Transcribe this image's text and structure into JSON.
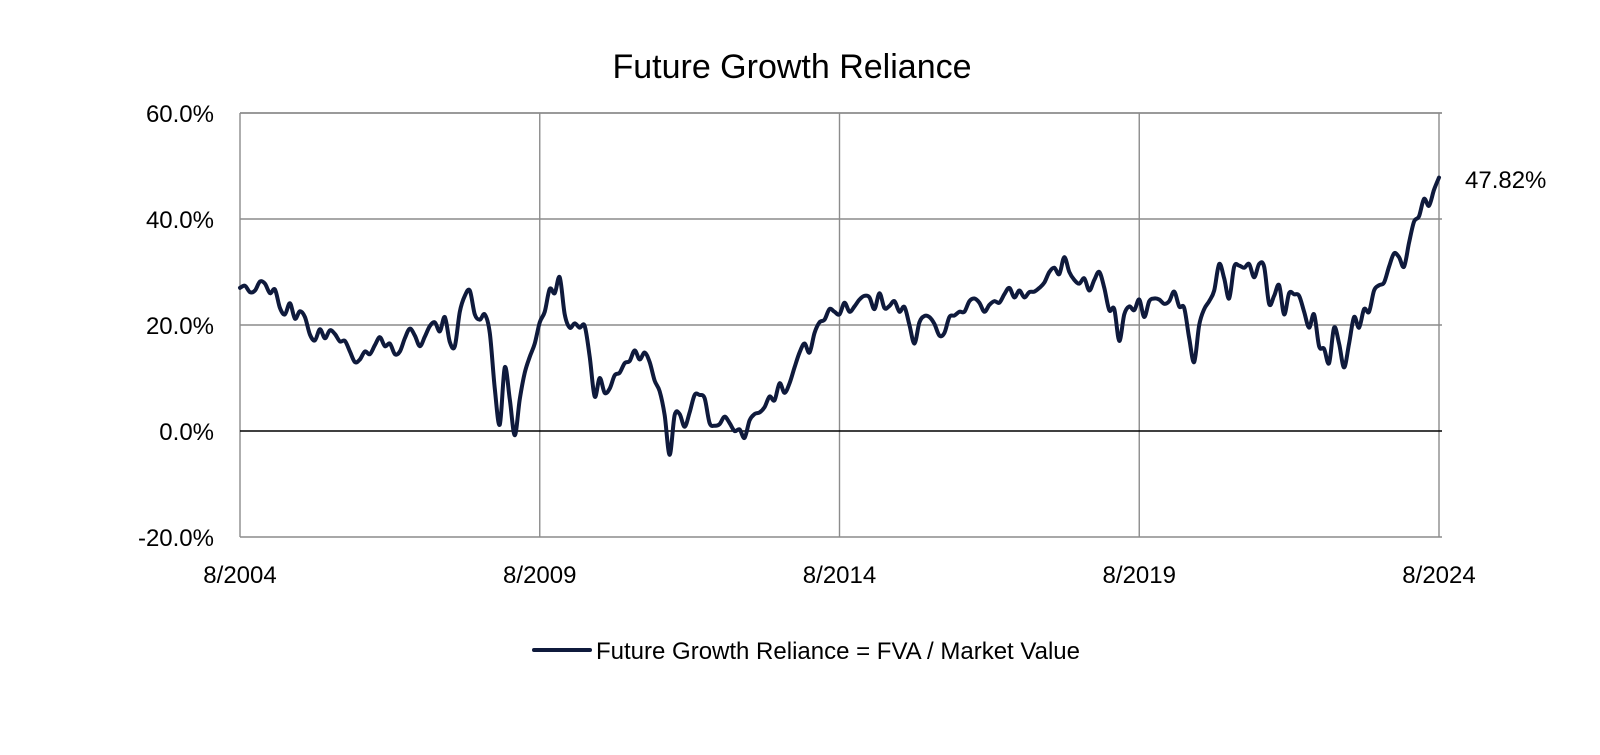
{
  "chart_data": {
    "type": "line",
    "title": "Future Growth Reliance",
    "xlabel": "",
    "ylabel": "",
    "x_range": [
      "2004-08",
      "2024-08"
    ],
    "x_tick_labels": [
      "8/2004",
      "8/2009",
      "8/2014",
      "8/2019",
      "8/2024"
    ],
    "ylim": [
      -20,
      60
    ],
    "y_tick_labels": [
      "-20.0%",
      "0.0%",
      "20.0%",
      "40.0%",
      "60.0%"
    ],
    "y_tick_values": [
      -20,
      0,
      20,
      40,
      60
    ],
    "grid": true,
    "legend_position": "bottom-center",
    "last_value_label": "47.82%",
    "colors": {
      "line": "#0f1a3c",
      "grid": "#8c8c8c",
      "zero_line": "#000000"
    },
    "series": [
      {
        "name": "Future Growth Reliance = FVA / Market Value",
        "points": [
          [
            "2004-08",
            27.0
          ],
          [
            "2004-09",
            27.4
          ],
          [
            "2004-10",
            26.2
          ],
          [
            "2004-11",
            26.5
          ],
          [
            "2004-12",
            28.2
          ],
          [
            "2005-01",
            27.8
          ],
          [
            "2005-02",
            26.0
          ],
          [
            "2005-03",
            26.7
          ],
          [
            "2005-04",
            23.2
          ],
          [
            "2005-05",
            22.0
          ],
          [
            "2005-06",
            24.1
          ],
          [
            "2005-07",
            21.2
          ],
          [
            "2005-08",
            22.6
          ],
          [
            "2005-09",
            21.5
          ],
          [
            "2005-10",
            18.2
          ],
          [
            "2005-11",
            17.1
          ],
          [
            "2005-12",
            19.2
          ],
          [
            "2006-01",
            17.5
          ],
          [
            "2006-02",
            19.0
          ],
          [
            "2006-03",
            18.3
          ],
          [
            "2006-04",
            16.9
          ],
          [
            "2006-05",
            17.0
          ],
          [
            "2006-06",
            15.0
          ],
          [
            "2006-07",
            13.0
          ],
          [
            "2006-08",
            13.5
          ],
          [
            "2006-09",
            15.0
          ],
          [
            "2006-10",
            14.5
          ],
          [
            "2006-11",
            16.2
          ],
          [
            "2006-12",
            17.7
          ],
          [
            "2007-01",
            16.0
          ],
          [
            "2007-02",
            16.5
          ],
          [
            "2007-03",
            14.5
          ],
          [
            "2007-04",
            15.0
          ],
          [
            "2007-05",
            17.5
          ],
          [
            "2007-06",
            19.3
          ],
          [
            "2007-07",
            18.0
          ],
          [
            "2007-08",
            16.0
          ],
          [
            "2007-09",
            17.8
          ],
          [
            "2007-10",
            19.8
          ],
          [
            "2007-11",
            20.5
          ],
          [
            "2007-12",
            18.8
          ],
          [
            "2008-01",
            21.5
          ],
          [
            "2008-02",
            16.8
          ],
          [
            "2008-03",
            16.0
          ],
          [
            "2008-04",
            22.5
          ],
          [
            "2008-05",
            25.5
          ],
          [
            "2008-06",
            26.5
          ],
          [
            "2008-07",
            22.0
          ],
          [
            "2008-08",
            21.0
          ],
          [
            "2008-09",
            22.0
          ],
          [
            "2008-10",
            18.5
          ],
          [
            "2008-11",
            8.0
          ],
          [
            "2008-12",
            1.2
          ],
          [
            "2009-01",
            12.0
          ],
          [
            "2009-02",
            6.0
          ],
          [
            "2009-03",
            -0.8
          ],
          [
            "2009-04",
            6.0
          ],
          [
            "2009-05",
            11.0
          ],
          [
            "2009-06",
            14.0
          ],
          [
            "2009-07",
            16.5
          ],
          [
            "2009-08",
            20.5
          ],
          [
            "2009-09",
            22.5
          ],
          [
            "2009-10",
            26.8
          ],
          [
            "2009-11",
            26.0
          ],
          [
            "2009-12",
            29.0
          ],
          [
            "2010-01",
            22.0
          ],
          [
            "2010-02",
            19.5
          ],
          [
            "2010-03",
            20.3
          ],
          [
            "2010-04",
            19.5
          ],
          [
            "2010-05",
            19.8
          ],
          [
            "2010-06",
            14.0
          ],
          [
            "2010-07",
            6.5
          ],
          [
            "2010-08",
            10.0
          ],
          [
            "2010-09",
            7.2
          ],
          [
            "2010-10",
            8.0
          ],
          [
            "2010-11",
            10.5
          ],
          [
            "2010-12",
            11.0
          ],
          [
            "2011-01",
            12.8
          ],
          [
            "2011-02",
            13.2
          ],
          [
            "2011-03",
            15.2
          ],
          [
            "2011-04",
            13.5
          ],
          [
            "2011-05",
            14.8
          ],
          [
            "2011-06",
            13.0
          ],
          [
            "2011-07",
            9.5
          ],
          [
            "2011-08",
            7.5
          ],
          [
            "2011-09",
            3.0
          ],
          [
            "2011-10",
            -4.5
          ],
          [
            "2011-11",
            3.0
          ],
          [
            "2011-12",
            3.2
          ],
          [
            "2012-01",
            0.8
          ],
          [
            "2012-02",
            3.5
          ],
          [
            "2012-03",
            6.8
          ],
          [
            "2012-04",
            6.8
          ],
          [
            "2012-05",
            6.2
          ],
          [
            "2012-06",
            1.5
          ],
          [
            "2012-07",
            1.0
          ],
          [
            "2012-08",
            1.3
          ],
          [
            "2012-09",
            2.7
          ],
          [
            "2012-10",
            1.5
          ],
          [
            "2012-11",
            0.0
          ],
          [
            "2012-12",
            0.3
          ],
          [
            "2013-01",
            -1.3
          ],
          [
            "2013-02",
            2.0
          ],
          [
            "2013-03",
            3.2
          ],
          [
            "2013-04",
            3.5
          ],
          [
            "2013-05",
            4.5
          ],
          [
            "2013-06",
            6.5
          ],
          [
            "2013-07",
            5.8
          ],
          [
            "2013-08",
            9.0
          ],
          [
            "2013-09",
            7.2
          ],
          [
            "2013-10",
            9.0
          ],
          [
            "2013-11",
            12.0
          ],
          [
            "2013-12",
            14.8
          ],
          [
            "2014-01",
            16.5
          ],
          [
            "2014-02",
            14.8
          ],
          [
            "2014-03",
            18.5
          ],
          [
            "2014-04",
            20.5
          ],
          [
            "2014-05",
            21.0
          ],
          [
            "2014-06",
            23.0
          ],
          [
            "2014-07",
            22.5
          ],
          [
            "2014-08",
            22.0
          ],
          [
            "2014-09",
            24.2
          ],
          [
            "2014-10",
            22.5
          ],
          [
            "2014-11",
            23.5
          ],
          [
            "2014-12",
            24.8
          ],
          [
            "2015-01",
            25.5
          ],
          [
            "2015-02",
            25.2
          ],
          [
            "2015-03",
            23.0
          ],
          [
            "2015-04",
            26.0
          ],
          [
            "2015-05",
            23.2
          ],
          [
            "2015-06",
            23.6
          ],
          [
            "2015-07",
            24.5
          ],
          [
            "2015-08",
            22.5
          ],
          [
            "2015-09",
            23.4
          ],
          [
            "2015-10",
            20.0
          ],
          [
            "2015-11",
            16.5
          ],
          [
            "2015-12",
            20.5
          ],
          [
            "2016-01",
            21.7
          ],
          [
            "2016-02",
            21.5
          ],
          [
            "2016-03",
            20.2
          ],
          [
            "2016-04",
            18.0
          ],
          [
            "2016-05",
            18.5
          ],
          [
            "2016-06",
            21.5
          ],
          [
            "2016-07",
            21.8
          ],
          [
            "2016-08",
            22.5
          ],
          [
            "2016-09",
            22.5
          ],
          [
            "2016-10",
            24.5
          ],
          [
            "2016-11",
            25.0
          ],
          [
            "2016-12",
            24.2
          ],
          [
            "2017-01",
            22.5
          ],
          [
            "2017-02",
            23.8
          ],
          [
            "2017-03",
            24.5
          ],
          [
            "2017-04",
            24.2
          ],
          [
            "2017-05",
            25.8
          ],
          [
            "2017-06",
            27.0
          ],
          [
            "2017-07",
            25.2
          ],
          [
            "2017-08",
            26.5
          ],
          [
            "2017-09",
            25.2
          ],
          [
            "2017-10",
            26.2
          ],
          [
            "2017-11",
            26.3
          ],
          [
            "2017-12",
            27.0
          ],
          [
            "2018-01",
            28.0
          ],
          [
            "2018-02",
            30.0
          ],
          [
            "2018-03",
            30.8
          ],
          [
            "2018-04",
            29.6
          ],
          [
            "2018-05",
            32.8
          ],
          [
            "2018-06",
            30.0
          ],
          [
            "2018-07",
            28.5
          ],
          [
            "2018-08",
            27.8
          ],
          [
            "2018-09",
            28.8
          ],
          [
            "2018-10",
            26.5
          ],
          [
            "2018-11",
            28.5
          ],
          [
            "2018-12",
            30.0
          ],
          [
            "2019-01",
            27.0
          ],
          [
            "2019-02",
            22.8
          ],
          [
            "2019-03",
            23.0
          ],
          [
            "2019-04",
            17.0
          ],
          [
            "2019-05",
            22.0
          ],
          [
            "2019-06",
            23.5
          ],
          [
            "2019-07",
            22.8
          ],
          [
            "2019-08",
            24.8
          ],
          [
            "2019-09",
            21.5
          ],
          [
            "2019-10",
            24.5
          ],
          [
            "2019-11",
            25.0
          ],
          [
            "2019-12",
            24.8
          ],
          [
            "2020-01",
            24.0
          ],
          [
            "2020-02",
            24.5
          ],
          [
            "2020-03",
            26.3
          ],
          [
            "2020-04",
            23.5
          ],
          [
            "2020-05",
            23.2
          ],
          [
            "2020-06",
            17.5
          ],
          [
            "2020-07",
            13.0
          ],
          [
            "2020-08",
            20.0
          ],
          [
            "2020-09",
            23.0
          ],
          [
            "2020-10",
            24.5
          ],
          [
            "2020-11",
            26.5
          ],
          [
            "2020-12",
            31.5
          ],
          [
            "2021-01",
            28.8
          ],
          [
            "2021-02",
            25.0
          ],
          [
            "2021-03",
            31.0
          ],
          [
            "2021-04",
            31.2
          ],
          [
            "2021-05",
            30.8
          ],
          [
            "2021-06",
            31.5
          ],
          [
            "2021-07",
            29.0
          ],
          [
            "2021-08",
            31.5
          ],
          [
            "2021-09",
            31.0
          ],
          [
            "2021-10",
            24.0
          ],
          [
            "2021-11",
            25.5
          ],
          [
            "2021-12",
            27.5
          ],
          [
            "2022-01",
            22.0
          ],
          [
            "2022-02",
            26.0
          ],
          [
            "2022-03",
            25.8
          ],
          [
            "2022-04",
            25.5
          ],
          [
            "2022-05",
            22.5
          ],
          [
            "2022-06",
            19.5
          ],
          [
            "2022-07",
            22.0
          ],
          [
            "2022-08",
            16.0
          ],
          [
            "2022-09",
            15.5
          ],
          [
            "2022-10",
            12.8
          ],
          [
            "2022-11",
            19.5
          ],
          [
            "2022-12",
            16.5
          ],
          [
            "2023-01",
            12.0
          ],
          [
            "2023-02",
            16.5
          ],
          [
            "2023-03",
            21.5
          ],
          [
            "2023-04",
            19.5
          ],
          [
            "2023-05",
            23.0
          ],
          [
            "2023-06",
            22.5
          ],
          [
            "2023-07",
            26.5
          ],
          [
            "2023-08",
            27.5
          ],
          [
            "2023-09",
            28.0
          ],
          [
            "2023-10",
            31.0
          ],
          [
            "2023-11",
            33.5
          ],
          [
            "2023-12",
            32.8
          ],
          [
            "2024-01",
            31.0
          ],
          [
            "2024-02",
            35.5
          ],
          [
            "2024-03",
            39.5
          ],
          [
            "2024-04",
            40.5
          ],
          [
            "2024-05",
            43.8
          ],
          [
            "2024-06",
            42.5
          ],
          [
            "2024-07",
            45.5
          ],
          [
            "2024-08",
            47.82
          ]
        ]
      }
    ]
  }
}
